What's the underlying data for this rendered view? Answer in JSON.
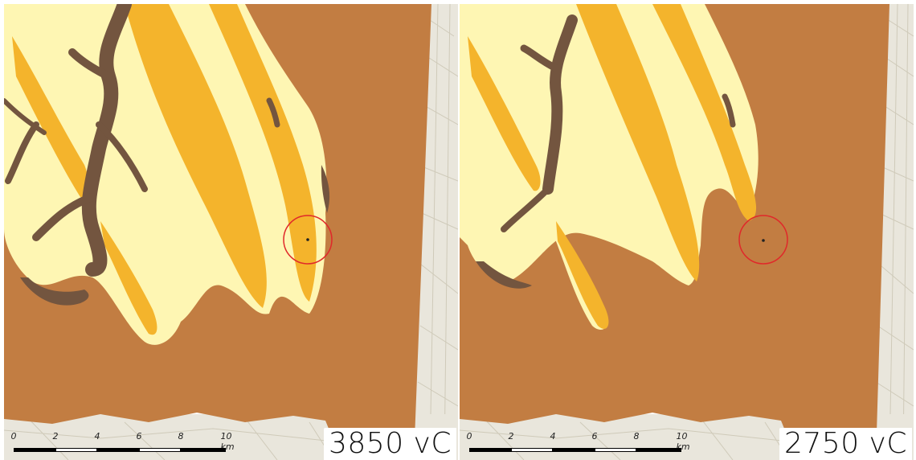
{
  "maps": [
    {
      "period_label": "3850 vC",
      "scale": {
        "ticks": [
          "0",
          "2",
          "4",
          "6",
          "8",
          "10 km"
        ]
      },
      "marker": {
        "shape": "red-circle",
        "color": "#e0282a"
      }
    },
    {
      "period_label": "2750 vC",
      "scale": {
        "ticks": [
          "0",
          "2",
          "4",
          "6",
          "8",
          "10 km"
        ]
      },
      "marker": {
        "shape": "red-circle",
        "color": "#e0282a"
      }
    }
  ],
  "colors": {
    "peat": "#c27d42",
    "sand_light": "#fef6b3",
    "sand_ridge": "#f4b42c",
    "creek": "#73553f",
    "basemap": "#e9e6dc",
    "circle": "#e0282a"
  }
}
